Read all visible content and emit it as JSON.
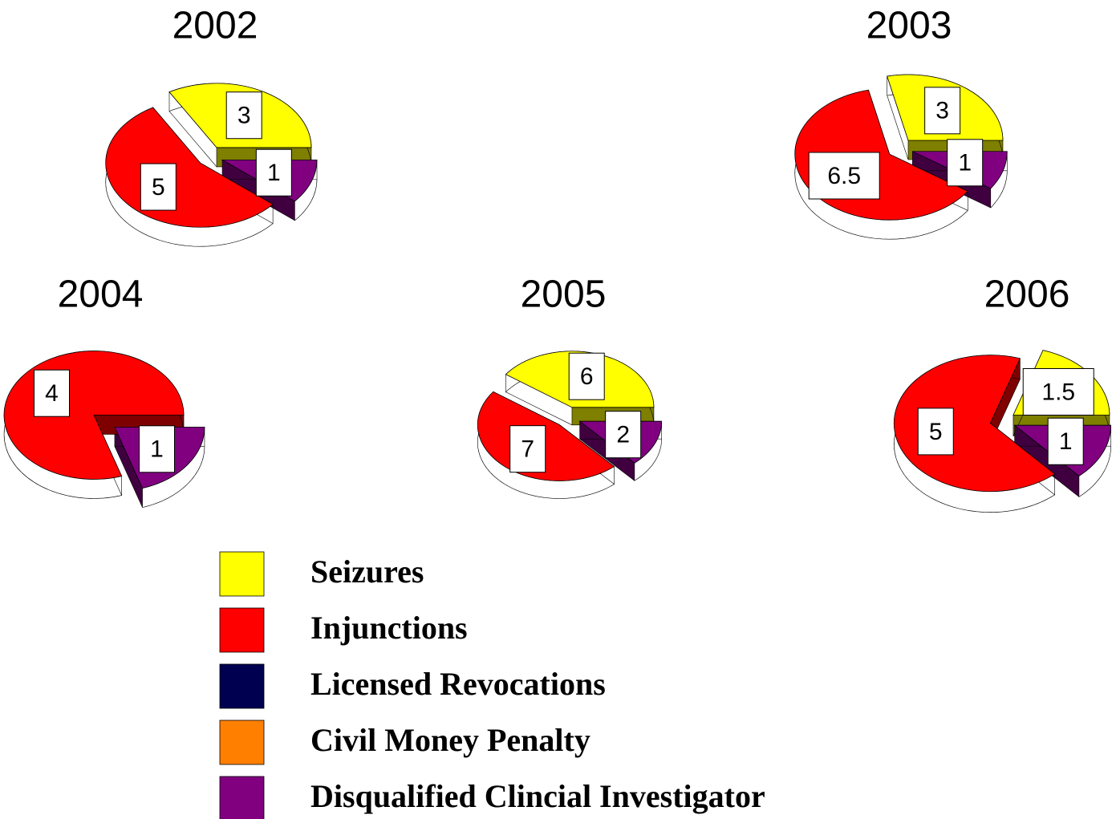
{
  "chart_data": [
    {
      "type": "pie",
      "title": "2002",
      "values": [
        3,
        5,
        null,
        null,
        1
      ]
    },
    {
      "type": "pie",
      "title": "2003",
      "values": [
        3,
        6.5,
        null,
        null,
        1
      ]
    },
    {
      "type": "pie",
      "title": "2004",
      "values": [
        null,
        4,
        null,
        null,
        1
      ]
    },
    {
      "type": "pie",
      "title": "2005",
      "values": [
        6,
        7,
        null,
        null,
        2
      ]
    },
    {
      "type": "pie",
      "title": "2006",
      "values": [
        1.5,
        5,
        null,
        null,
        1
      ]
    }
  ],
  "legend": [
    {
      "name": "Seizures",
      "color": "#ffff00"
    },
    {
      "name": "Injunctions",
      "color": "#ff0000"
    },
    {
      "name": "Licensed Revocations",
      "color": "#000050"
    },
    {
      "name": "Civil Money Penalty",
      "color": "#ff8000"
    },
    {
      "name": "Disqualified Clincial Investigator",
      "color": "#800080"
    }
  ]
}
